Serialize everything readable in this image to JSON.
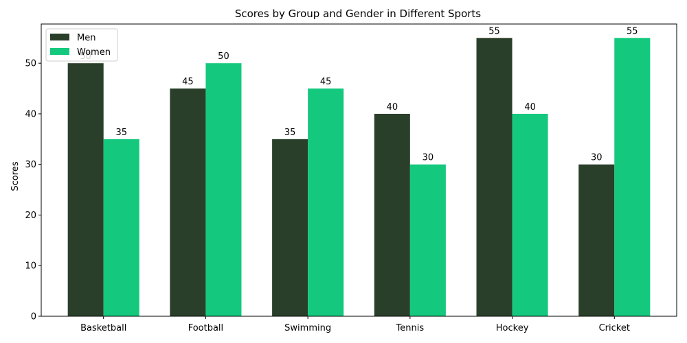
{
  "chart_data": {
    "type": "bar",
    "title": "Scores by Group and Gender in Different Sports",
    "xlabel": "",
    "ylabel": "Scores",
    "categories": [
      "Basketball",
      "Football",
      "Swimming",
      "Tennis",
      "Hockey",
      "Cricket"
    ],
    "series": [
      {
        "name": "Men",
        "values": [
          50,
          45,
          35,
          40,
          55,
          30
        ],
        "color": "#2a3f2a"
      },
      {
        "name": "Women",
        "values": [
          35,
          50,
          45,
          30,
          40,
          55
        ],
        "color": "#14c97e"
      }
    ],
    "ylim": [
      0,
      57.75
    ],
    "yticks": [
      0,
      10,
      20,
      30,
      40,
      50
    ],
    "grid": false,
    "legend_position": "top-left"
  }
}
